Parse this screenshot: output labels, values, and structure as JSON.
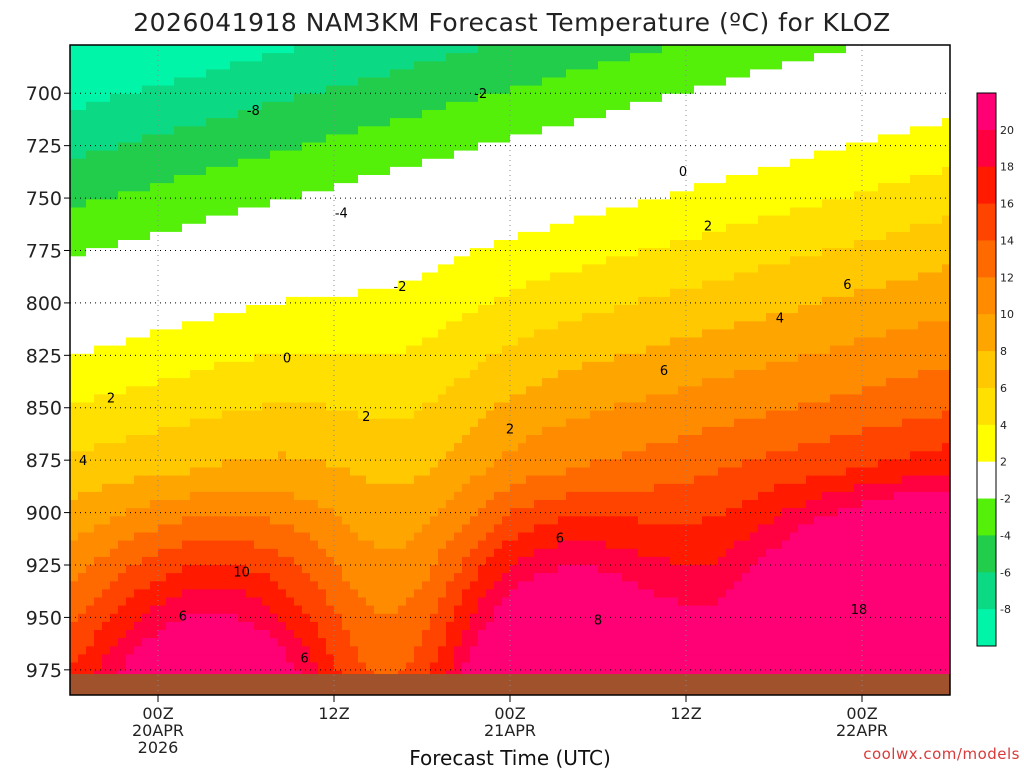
{
  "chart_data": {
    "type": "heatmap",
    "title": "2026041918 NAM3KM Forecast Temperature (ºC) for KLOZ",
    "xlabel": "Forecast Time (UTC)",
    "ylabel": "",
    "x_ticks": [
      {
        "hour": 6,
        "lines": [
          "00Z",
          "20APR",
          "2026"
        ]
      },
      {
        "hour": 18,
        "lines": [
          "12Z"
        ]
      },
      {
        "hour": 30,
        "lines": [
          "00Z",
          "21APR"
        ]
      },
      {
        "hour": 42,
        "lines": [
          "12Z"
        ]
      },
      {
        "hour": 54,
        "lines": [
          "00Z",
          "22APR"
        ]
      }
    ],
    "xlim": [
      0,
      60
    ],
    "ylim": [
      987,
      677
    ],
    "y_ticks": [
      700,
      725,
      750,
      775,
      800,
      825,
      850,
      875,
      900,
      925,
      950,
      975
    ],
    "y_scale": "pressure (hPa), inverted",
    "grid": true,
    "colorbar": {
      "levels": [
        -10,
        -8,
        -6,
        -4,
        -2,
        2,
        4,
        6,
        8,
        10,
        12,
        14,
        16,
        18,
        20,
        22
      ],
      "labels": [
        "-8",
        "-6",
        "-4",
        "-2",
        "2",
        "4",
        "6",
        "8",
        "10",
        "12",
        "14",
        "16",
        "18",
        "20"
      ],
      "colors": [
        "#00f5a8",
        "#0cd984",
        "#22cd4c",
        "#54f00a",
        "#ffffff",
        "#ffff00",
        "#ffe000",
        "#ffc800",
        "#ffa500",
        "#ff8c00",
        "#ff6a00",
        "#ff4400",
        "#ff1a00",
        "#ff0040",
        "#ff0075"
      ]
    },
    "contour_labels": [
      {
        "text": "-8",
        "x": 12.5,
        "p": 708
      },
      {
        "text": "-4",
        "x": 18.5,
        "p": 757
      },
      {
        "text": "-2",
        "x": 22.5,
        "p": 792
      },
      {
        "text": "-2",
        "x": 28,
        "p": 700
      },
      {
        "text": "0",
        "x": 14.8,
        "p": 826
      },
      {
        "text": "0",
        "x": 41.8,
        "p": 737
      },
      {
        "text": "2",
        "x": 2.8,
        "p": 845
      },
      {
        "text": "2",
        "x": 20.2,
        "p": 854
      },
      {
        "text": "2",
        "x": 30.0,
        "p": 860
      },
      {
        "text": "2",
        "x": 43.5,
        "p": 763
      },
      {
        "text": "4",
        "x": 0.9,
        "p": 875
      },
      {
        "text": "4",
        "x": 48.4,
        "p": 807
      },
      {
        "text": "6",
        "x": 7.7,
        "p": 949
      },
      {
        "text": "6",
        "x": 16.0,
        "p": 969
      },
      {
        "text": "6",
        "x": 33.4,
        "p": 912
      },
      {
        "text": "6",
        "x": 40.5,
        "p": 832
      },
      {
        "text": "6",
        "x": 53.0,
        "p": 791
      },
      {
        "text": "8",
        "x": 36.0,
        "p": 951
      },
      {
        "text": "10",
        "x": 11.7,
        "p": 928
      },
      {
        "text": "18",
        "x": 53.8,
        "p": 946
      }
    ]
  },
  "credit": "coolwx.com/models"
}
